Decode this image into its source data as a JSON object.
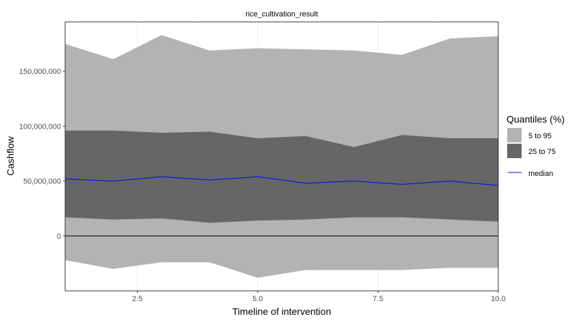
{
  "chart_data": {
    "type": "area",
    "title": "rice_cultivation_result",
    "xlabel": "Timeline of intervention",
    "ylabel": "Cashflow",
    "x": [
      1,
      2,
      3,
      4,
      5,
      6,
      7,
      8,
      9,
      10
    ],
    "xlim": [
      1,
      10
    ],
    "ylim": [
      -50000000,
      195000000
    ],
    "x_ticks": [
      2.5,
      5.0,
      7.5,
      10.0
    ],
    "x_tick_labels": [
      "2.5",
      "5.0",
      "7.5",
      "10.0"
    ],
    "y_ticks": [
      0,
      50000000,
      100000000,
      150000000
    ],
    "y_tick_labels": [
      "0",
      "50,000,000",
      "100,000,000",
      "150,000,000"
    ],
    "grid": true,
    "reference_line_y": 0,
    "legend": {
      "title": "Quantiles (%)",
      "placement": "right",
      "entries": [
        "5 to 95",
        "25 to 75",
        "median"
      ]
    },
    "series": [
      {
        "name": "5 to 95",
        "lower": [
          -22000000,
          -30000000,
          -24000000,
          -24000000,
          -38000000,
          -31000000,
          -31000000,
          -31000000,
          -29000000,
          -29000000
        ],
        "upper": [
          175000000,
          161000000,
          183000000,
          169000000,
          171000000,
          170000000,
          169000000,
          165000000,
          180000000,
          182000000
        ],
        "color": "#b3b3b3"
      },
      {
        "name": "25 to 75",
        "lower": [
          17000000,
          15000000,
          16000000,
          12000000,
          14000000,
          15000000,
          17000000,
          17000000,
          15000000,
          13000000
        ],
        "upper": [
          96000000,
          96000000,
          94000000,
          95000000,
          89000000,
          91000000,
          81000000,
          92000000,
          89000000,
          89000000
        ],
        "color": "#666666"
      },
      {
        "name": "median",
        "values": [
          52000000,
          50000000,
          54000000,
          51000000,
          54000000,
          48000000,
          50000000,
          47000000,
          50000000,
          46000000
        ],
        "color": "#0000ff"
      }
    ]
  }
}
